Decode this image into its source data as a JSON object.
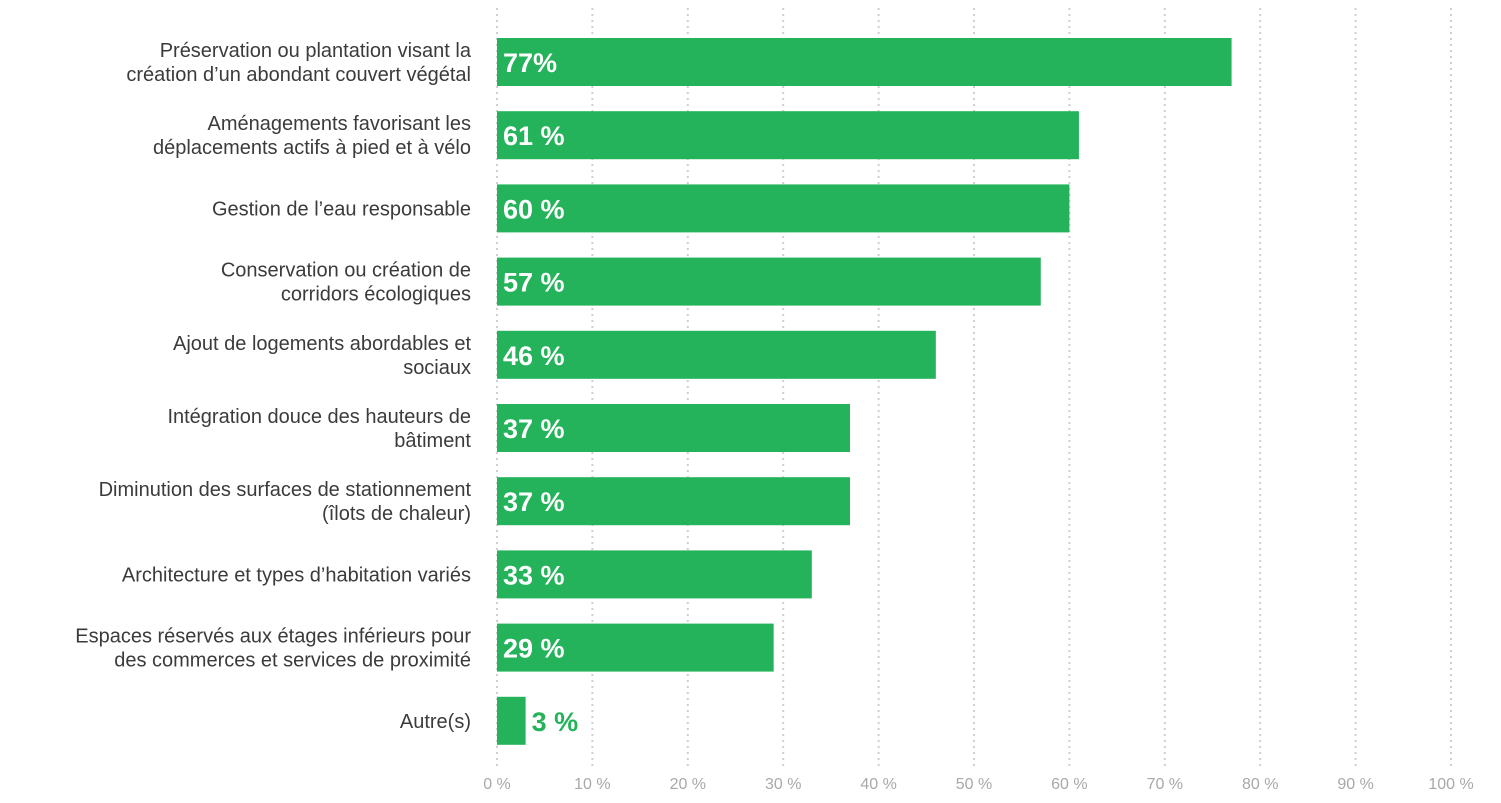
{
  "chart_data": {
    "type": "bar",
    "orientation": "horizontal",
    "categories": [
      [
        "Préservation ou plantation visant la",
        "création d’un abondant couvert végétal"
      ],
      [
        "Aménagements favorisant les",
        "déplacements actifs à pied et à vélo"
      ],
      [
        "Gestion de l’eau responsable"
      ],
      [
        "Conservation ou création de",
        "corridors écologiques"
      ],
      [
        "Ajout de logements abordables et",
        "sociaux"
      ],
      [
        "Intégration douce des hauteurs de",
        "bâtiment"
      ],
      [
        "Diminution des surfaces de stationnement",
        "(îlots de chaleur)"
      ],
      [
        "Architecture et types d’habitation variés"
      ],
      [
        "Espaces réservés aux étages inférieurs pour",
        "des commerces et services de proximité"
      ],
      [
        "Autre(s)"
      ]
    ],
    "values": [
      77,
      61,
      60,
      57,
      46,
      37,
      37,
      33,
      29,
      3
    ],
    "value_labels": [
      "77%",
      "61 %",
      "60 %",
      "57 %",
      "46 %",
      "37 %",
      "37 %",
      "33 %",
      "29 %",
      "3 %"
    ],
    "xlim": [
      0,
      100
    ],
    "x_ticks": [
      0,
      10,
      20,
      30,
      40,
      50,
      60,
      70,
      80,
      90,
      100
    ],
    "x_tick_labels": [
      "0 %",
      "10 %",
      "20 %",
      "30 %",
      "40 %",
      "50 %",
      "60 %",
      "70 %",
      "80 %",
      "90 %",
      "100 %"
    ],
    "grid": "vertical-dotted",
    "bar_color": "#24b35a",
    "grid_color": "#cfcfcf",
    "tick_label_color": "#a8a8a8",
    "category_label_color": "#3b3b3b",
    "value_label_inside_color": "#ffffff"
  }
}
